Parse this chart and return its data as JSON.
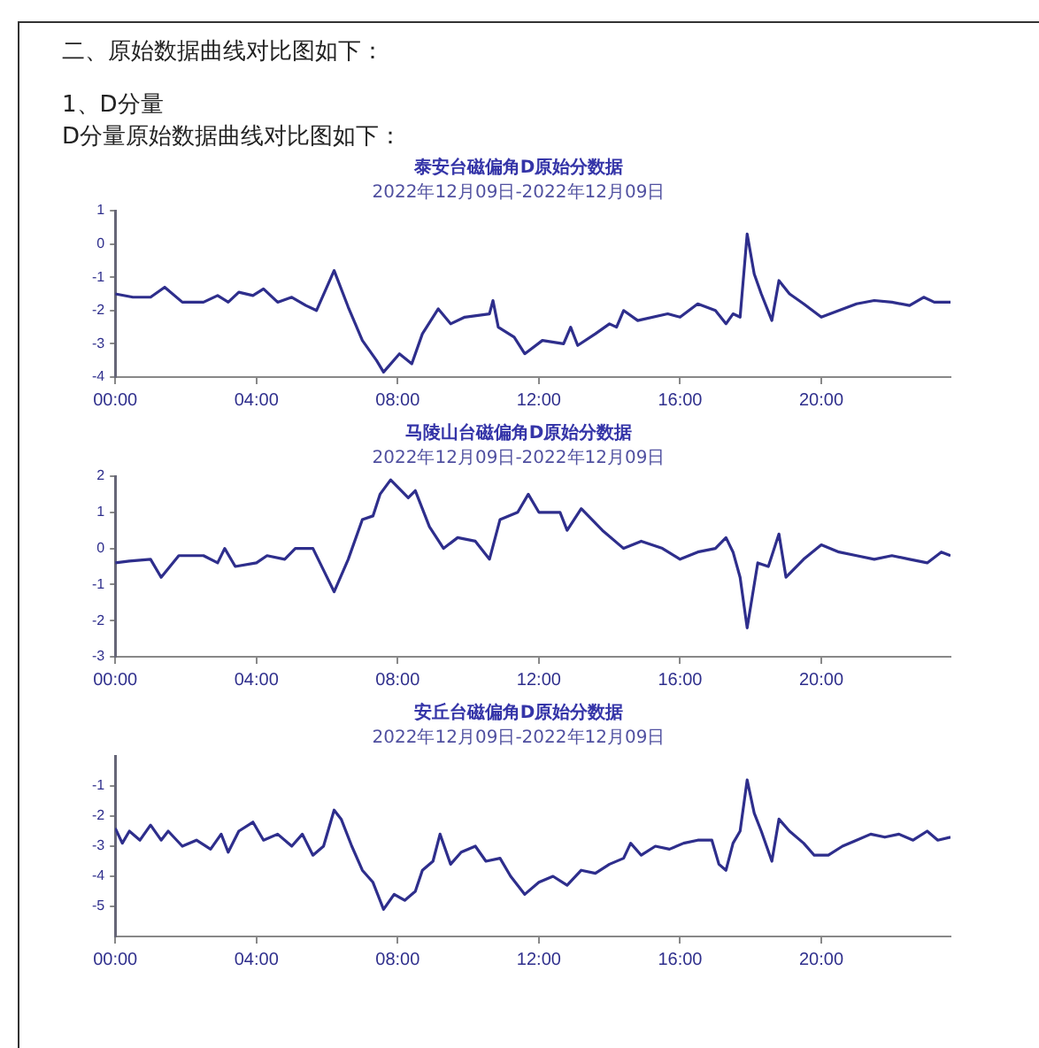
{
  "chart_data": [
    {
      "type": "line",
      "title": "泰安台磁偏角D原始分数据",
      "subtitle": "2022年12月09日-2022年12月09日",
      "annotations": [
        "二、原始数据曲线对比图如下：",
        "1、D分量",
        "D分量原始数据曲线对比图如下："
      ],
      "xlim": [
        0,
        23.66
      ],
      "xticks": [
        {
          "value": 0,
          "label": "00:00"
        },
        {
          "value": 4,
          "label": "04:00"
        },
        {
          "value": 8,
          "label": "08:00"
        },
        {
          "value": 12,
          "label": "12:00"
        },
        {
          "value": 16,
          "label": "16:00"
        },
        {
          "value": 20,
          "label": "20:00"
        }
      ],
      "ylim": [
        -4,
        1
      ],
      "yticks": [
        -4,
        -3,
        -2,
        -1,
        0,
        1
      ],
      "grid": false,
      "legend": false,
      "series": [
        {
          "color": "#2e2e8c",
          "x": [
            0,
            0.5,
            1,
            1.4,
            1.9,
            2.5,
            2.9,
            3.2,
            3.5,
            3.9,
            4.2,
            4.6,
            5,
            5.4,
            5.7,
            6.2,
            6.6,
            7,
            7.4,
            7.6,
            8.05,
            8.4,
            8.7,
            9.15,
            9.5,
            9.9,
            10.6,
            10.7,
            10.85,
            11.3,
            11.6,
            12.1,
            12.7,
            12.9,
            13.1,
            13.6,
            14,
            14.2,
            14.4,
            14.8,
            15.65,
            16,
            16.5,
            17,
            17.3,
            17.5,
            17.7,
            17.9,
            18.1,
            18.3,
            18.6,
            18.8,
            19.1,
            19.5,
            20,
            20.5,
            21,
            21.5,
            22,
            22.5,
            22.9,
            23.2,
            23.66
          ],
          "values": [
            -1.5,
            -1.6,
            -1.6,
            -1.3,
            -1.75,
            -1.75,
            -1.55,
            -1.75,
            -1.45,
            -1.55,
            -1.35,
            -1.75,
            -1.6,
            -1.85,
            -2,
            -0.8,
            -1.9,
            -2.9,
            -3.5,
            -3.85,
            -3.3,
            -3.6,
            -2.7,
            -1.95,
            -2.4,
            -2.2,
            -2.1,
            -1.7,
            -2.5,
            -2.8,
            -3.3,
            -2.9,
            -3,
            -2.5,
            -3.05,
            -2.7,
            -2.4,
            -2.5,
            -2,
            -2.3,
            -2.1,
            -2.2,
            -1.8,
            -2,
            -2.4,
            -2.1,
            -2.2,
            0.3,
            -0.9,
            -1.5,
            -2.3,
            -1.1,
            -1.5,
            -1.8,
            -2.2,
            -2,
            -1.8,
            -1.7,
            -1.75,
            -1.85,
            -1.6,
            -1.75,
            -1.75
          ]
        }
      ]
    },
    {
      "type": "line",
      "title": "马陵山台磁偏角D原始分数据",
      "subtitle": "2022年12月09日-2022年12月09日",
      "xlim": [
        0,
        23.66
      ],
      "xticks": [
        {
          "value": 0,
          "label": "00:00"
        },
        {
          "value": 4,
          "label": "04:00"
        },
        {
          "value": 8,
          "label": "08:00"
        },
        {
          "value": 12,
          "label": "12:00"
        },
        {
          "value": 16,
          "label": "16:00"
        },
        {
          "value": 20,
          "label": "20:00"
        }
      ],
      "ylim": [
        -3,
        2
      ],
      "yticks": [
        -3,
        -2,
        -1,
        0,
        1,
        2
      ],
      "grid": false,
      "legend": false,
      "series": [
        {
          "color": "#2e2e8c",
          "x": [
            0,
            0.4,
            1,
            1.3,
            1.8,
            2.5,
            2.9,
            3.1,
            3.4,
            4,
            4.3,
            4.8,
            5.1,
            5.6,
            5.9,
            6.2,
            6.6,
            7,
            7.3,
            7.5,
            7.8,
            8.3,
            8.5,
            8.9,
            9.3,
            9.7,
            10.2,
            10.6,
            10.9,
            11.4,
            11.7,
            12,
            12.6,
            12.8,
            13.2,
            13.8,
            14.4,
            14.9,
            15.5,
            16,
            16.5,
            17,
            17.3,
            17.5,
            17.7,
            17.9,
            18.2,
            18.5,
            18.8,
            19,
            19.5,
            20,
            20.5,
            21,
            21.5,
            22,
            22.5,
            23,
            23.4,
            23.66
          ],
          "values": [
            -0.4,
            -0.35,
            -0.3,
            -0.8,
            -0.2,
            -0.2,
            -0.4,
            0,
            -0.5,
            -0.4,
            -0.2,
            -0.3,
            0,
            0,
            -0.6,
            -1.2,
            -0.3,
            0.8,
            0.9,
            1.5,
            1.9,
            1.4,
            1.6,
            0.6,
            0,
            0.3,
            0.2,
            -0.3,
            0.8,
            1,
            1.5,
            1,
            1,
            0.5,
            1.1,
            0.5,
            0,
            0.2,
            0,
            -0.3,
            -0.1,
            0,
            0.3,
            -0.1,
            -0.8,
            -2.2,
            -0.4,
            -0.5,
            0.4,
            -0.8,
            -0.3,
            0.1,
            -0.1,
            -0.2,
            -0.3,
            -0.2,
            -0.3,
            -0.4,
            -0.1,
            -0.2
          ]
        }
      ]
    },
    {
      "type": "line",
      "title": "安丘台磁偏角D原始分数据",
      "subtitle": "2022年12月09日-2022年12月09日",
      "xlim": [
        0,
        23.66
      ],
      "xticks": [
        {
          "value": 0,
          "label": "00:00"
        },
        {
          "value": 4,
          "label": "04:00"
        },
        {
          "value": 8,
          "label": "08:00"
        },
        {
          "value": 12,
          "label": "12:00"
        },
        {
          "value": 16,
          "label": "16:00"
        },
        {
          "value": 20,
          "label": "20:00"
        }
      ],
      "ylim": [
        -6,
        0
      ],
      "yticks": [
        -5,
        -4,
        -3,
        -2,
        -1
      ],
      "grid": false,
      "legend": false,
      "series": [
        {
          "color": "#2e2e8c",
          "x": [
            0,
            0.2,
            0.4,
            0.7,
            1,
            1.3,
            1.5,
            1.9,
            2.3,
            2.7,
            3,
            3.2,
            3.5,
            3.9,
            4.2,
            4.6,
            5,
            5.3,
            5.6,
            5.9,
            6.2,
            6.4,
            6.7,
            7,
            7.3,
            7.6,
            7.9,
            8.2,
            8.5,
            8.7,
            9,
            9.2,
            9.5,
            9.8,
            10.2,
            10.5,
            10.9,
            11.2,
            11.6,
            12,
            12.4,
            12.8,
            13.2,
            13.6,
            14,
            14.4,
            14.6,
            14.9,
            15.3,
            15.7,
            16.1,
            16.5,
            16.9,
            17.1,
            17.3,
            17.5,
            17.7,
            17.9,
            18.1,
            18.3,
            18.6,
            18.8,
            19.1,
            19.5,
            19.8,
            20.2,
            20.6,
            21,
            21.4,
            21.8,
            22.2,
            22.6,
            23,
            23.3,
            23.66
          ],
          "values": [
            -2.4,
            -2.9,
            -2.5,
            -2.8,
            -2.3,
            -2.8,
            -2.5,
            -3,
            -2.8,
            -3.1,
            -2.6,
            -3.2,
            -2.5,
            -2.2,
            -2.8,
            -2.6,
            -3,
            -2.6,
            -3.3,
            -3,
            -1.8,
            -2.1,
            -3,
            -3.8,
            -4.2,
            -5.1,
            -4.6,
            -4.8,
            -4.5,
            -3.8,
            -3.5,
            -2.6,
            -3.6,
            -3.2,
            -3,
            -3.5,
            -3.4,
            -4,
            -4.6,
            -4.2,
            -4,
            -4.3,
            -3.8,
            -3.9,
            -3.6,
            -3.4,
            -2.9,
            -3.3,
            -3,
            -3.1,
            -2.9,
            -2.8,
            -2.8,
            -3.6,
            -3.8,
            -2.9,
            -2.5,
            -0.8,
            -1.9,
            -2.5,
            -3.5,
            -2.1,
            -2.5,
            -2.9,
            -3.3,
            -3.3,
            -3,
            -2.8,
            -2.6,
            -2.7,
            -2.6,
            -2.8,
            -2.5,
            -2.8,
            -2.7
          ]
        }
      ]
    }
  ]
}
